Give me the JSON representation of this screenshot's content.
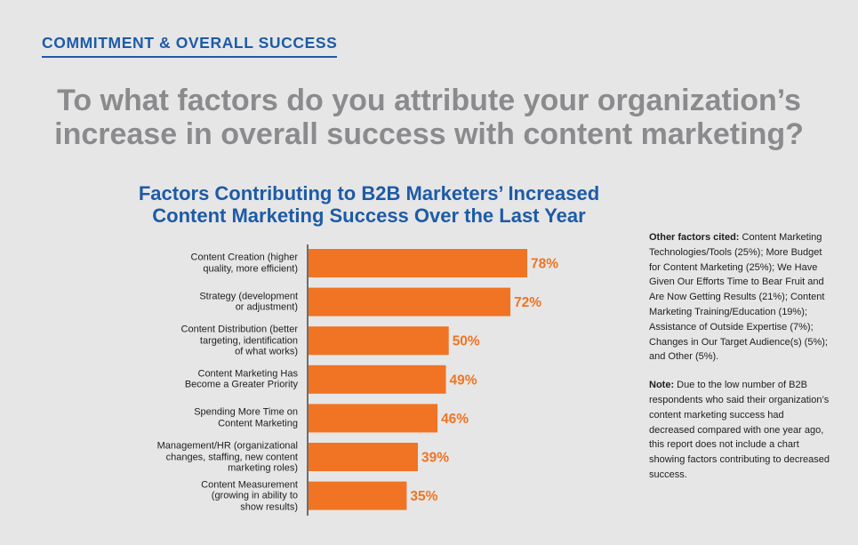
{
  "section_tag": "COMMITMENT & OVERALL SUCCESS",
  "question": {
    "line1": "To what factors do you attribute your organization’s",
    "line2": "increase in overall success with content marketing?"
  },
  "colors": {
    "bar": "#f07423",
    "value_label": "#f07423",
    "title": "#1d5ba6",
    "axis": "#1e1e1e"
  },
  "chart_data": {
    "type": "bar",
    "orientation": "horizontal",
    "title": "Factors Contributing to B2B Marketers’ Increased Content Marketing Success Over the Last Year",
    "title_lines": [
      "Factors Contributing to B2B Marketers’ Increased",
      "Content Marketing Success Over the Last Year"
    ],
    "categories": [
      [
        "Content Creation (higher",
        "quality, more efficient)"
      ],
      [
        "Strategy (development",
        "or adjustment)"
      ],
      [
        "Content Distribution (better",
        "targeting, identification",
        "of what works)"
      ],
      [
        "Content Marketing Has",
        "Become a Greater Priority"
      ],
      [
        "Spending More Time on",
        "Content Marketing"
      ],
      [
        "Management/HR (organizational",
        "changes, staffing, new content",
        "marketing roles)"
      ],
      [
        "Content Measurement",
        "(growing in ability to",
        "show results)"
      ]
    ],
    "values": [
      78,
      72,
      50,
      49,
      46,
      39,
      35
    ],
    "value_labels": [
      "78%",
      "72%",
      "50%",
      "49%",
      "46%",
      "39%",
      "35%"
    ],
    "unit": "%",
    "xlim": [
      0,
      100
    ],
    "xlabel": "",
    "ylabel": "",
    "grid": false
  },
  "other_factors": {
    "heading": "Other factors cited:",
    "text": " Content Marketing Technologies/Tools (25%); More Budget for Content Marketing (25%); We Have Given Our Efforts Time to Bear Fruit and Are Now Getting Results (21%); Content Marketing Training/Education (19%); Assistance of Outside Expertise (7%); Changes in Our Target Audience(s) (5%); and Other (5%)."
  },
  "note": {
    "heading": "Note:",
    "text": " Due to the low number of B2B respondents who said their organization’s content marketing success had decreased compared with one year ago, this report does not include a chart showing factors contributing to decreased success."
  }
}
